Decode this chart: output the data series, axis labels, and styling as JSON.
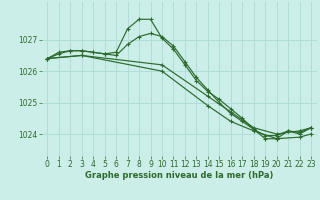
{
  "bg_color": "#cceee8",
  "grid_color": "#b0ddd8",
  "line_color": "#2d6a2d",
  "marker_color": "#2d6a2d",
  "xlabel": "Graphe pression niveau de la mer (hPa)",
  "xlabel_color": "#2d6a2d",
  "tick_color": "#2d6a2d",
  "ylim": [
    1023.3,
    1028.2
  ],
  "xlim": [
    -0.5,
    23.5
  ],
  "yticks": [
    1024,
    1025,
    1026,
    1027
  ],
  "xticks": [
    0,
    1,
    2,
    3,
    4,
    5,
    6,
    7,
    8,
    9,
    10,
    11,
    12,
    13,
    14,
    15,
    16,
    17,
    18,
    19,
    20,
    21,
    22,
    23
  ],
  "series": [
    {
      "x": [
        0,
        1,
        2,
        3,
        4,
        5,
        6,
        7,
        8,
        9,
        10,
        11,
        12,
        13,
        14,
        15,
        16,
        17,
        18,
        19,
        20,
        21,
        22,
        23
      ],
      "y": [
        1026.4,
        1026.6,
        1026.65,
        1026.65,
        1026.6,
        1026.55,
        1026.6,
        1027.35,
        1027.65,
        1027.65,
        1027.05,
        1026.7,
        1026.2,
        1025.7,
        1025.35,
        1025.1,
        1024.8,
        1024.5,
        1024.15,
        1023.85,
        1023.85,
        1024.1,
        1024.0,
        1024.2
      ],
      "markers_at": [
        0,
        1,
        2,
        3,
        4,
        5,
        6,
        7,
        8,
        9,
        10,
        11,
        12,
        13,
        14,
        15,
        16,
        17,
        18,
        19,
        20,
        21,
        22,
        23
      ]
    },
    {
      "x": [
        0,
        1,
        2,
        3,
        4,
        5,
        6,
        7,
        8,
        9,
        10,
        11,
        12,
        13,
        14,
        15,
        16,
        17,
        18,
        19,
        20,
        21,
        22,
        23
      ],
      "y": [
        1026.4,
        1026.55,
        1026.65,
        1026.65,
        1026.6,
        1026.55,
        1026.5,
        1026.85,
        1027.1,
        1027.2,
        1027.1,
        1026.8,
        1026.3,
        1025.8,
        1025.4,
        1025.0,
        1024.65,
        1024.4,
        1024.15,
        1023.95,
        1023.95,
        1024.1,
        1024.05,
        1024.2
      ],
      "markers_at": [
        0,
        1,
        2,
        3,
        4,
        5,
        6,
        7,
        8,
        9,
        10,
        11,
        12,
        13,
        14,
        15,
        16,
        17,
        18,
        19,
        20,
        21,
        22,
        23
      ]
    },
    {
      "x": [
        0,
        3,
        10,
        14,
        16,
        18,
        20,
        22,
        23
      ],
      "y": [
        1026.4,
        1026.5,
        1026.2,
        1025.2,
        1024.7,
        1024.2,
        1024.0,
        1024.1,
        1024.2
      ],
      "markers_at": [
        0,
        3,
        10,
        14,
        16,
        18,
        20,
        22,
        23
      ]
    },
    {
      "x": [
        0,
        3,
        10,
        14,
        16,
        18,
        20,
        22,
        23
      ],
      "y": [
        1026.4,
        1026.5,
        1026.0,
        1024.9,
        1024.4,
        1024.1,
        1023.85,
        1023.9,
        1024.0
      ],
      "markers_at": [
        0,
        3,
        10,
        14,
        16,
        18,
        20,
        22,
        23
      ]
    }
  ]
}
